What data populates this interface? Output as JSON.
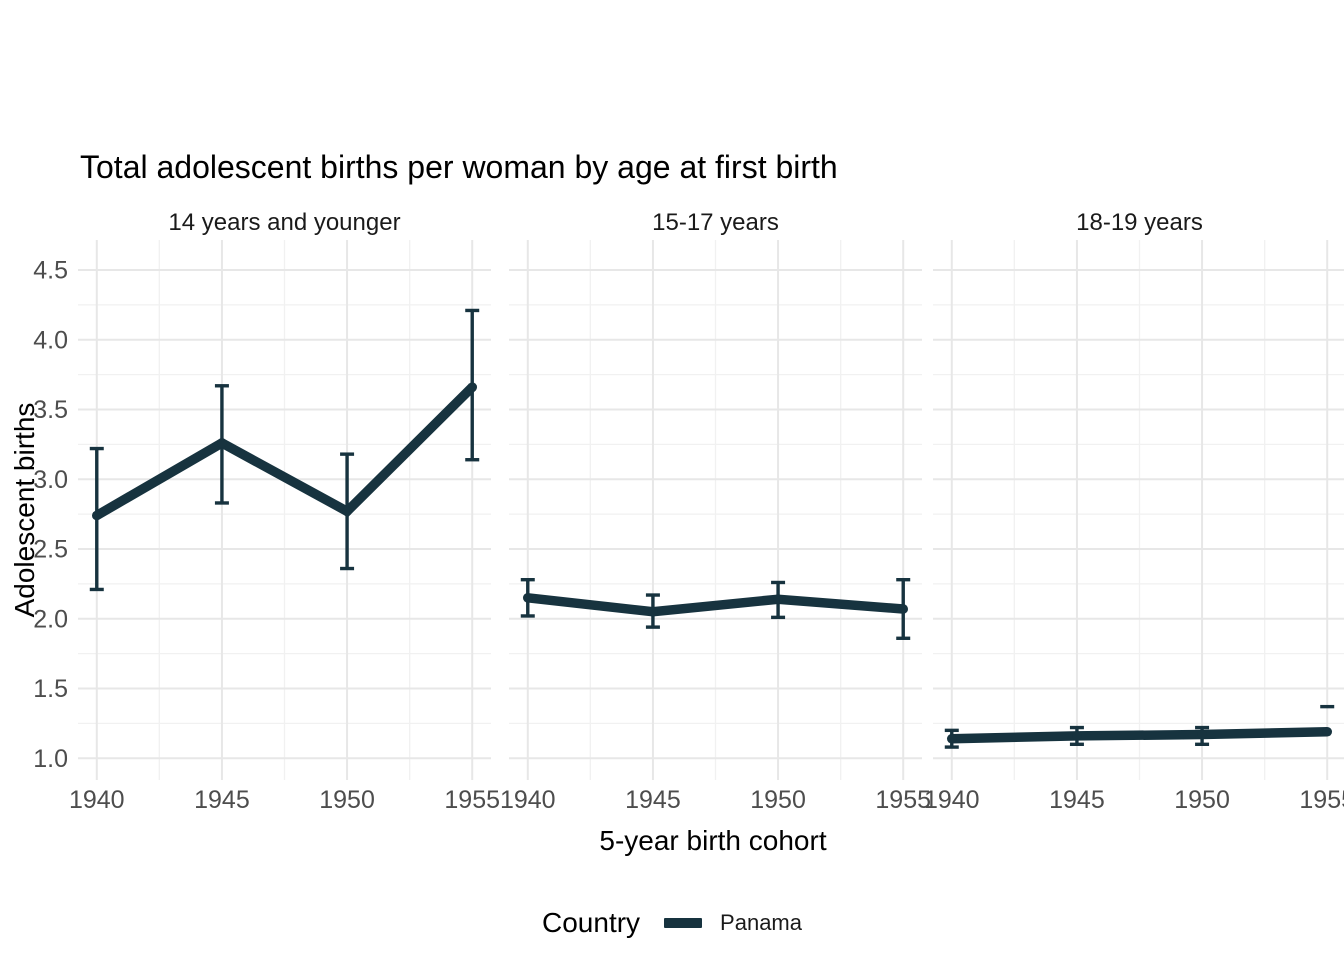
{
  "title": "Total adolescent births per woman by age at first birth",
  "legend": {
    "title": "Country",
    "entries": [
      {
        "label": "Panama",
        "color": "#17333F"
      }
    ]
  },
  "chart_data": {
    "type": "line",
    "title": "Total adolescent births per woman by age at first birth",
    "xlabel": "5-year birth cohort",
    "ylabel": "Adolescent births",
    "x": [
      1940,
      1945,
      1950,
      1955
    ],
    "x_tick_labels": [
      "1940",
      "1945",
      "1950",
      "1955"
    ],
    "x_minor_ticks": [
      1942.5,
      1947.5,
      1952.5
    ],
    "y_ticks": [
      1.0,
      1.5,
      2.0,
      2.5,
      3.0,
      3.5,
      4.0,
      4.5
    ],
    "y_minor_ticks": [
      1.25,
      1.75,
      2.25,
      2.75,
      3.25,
      3.75,
      4.25
    ],
    "ylim": [
      0.85,
      4.72
    ],
    "xlim": [
      1939.25,
      1955.75
    ],
    "grid": true,
    "legend_position": "bottom",
    "facets": [
      {
        "label": "14 years and younger",
        "series": [
          {
            "name": "Panama",
            "values": [
              2.74,
              3.26,
              2.77,
              3.66
            ],
            "ci_low": [
              2.21,
              2.83,
              2.36,
              3.14
            ],
            "ci_high": [
              3.22,
              3.67,
              3.18,
              4.21
            ]
          }
        ]
      },
      {
        "label": "15-17 years",
        "series": [
          {
            "name": "Panama",
            "values": [
              2.15,
              2.05,
              2.14,
              2.07
            ],
            "ci_low": [
              2.02,
              1.94,
              2.01,
              1.86
            ],
            "ci_high": [
              2.28,
              2.17,
              2.26,
              2.28
            ]
          }
        ]
      },
      {
        "label": "18-19 years",
        "series": [
          {
            "name": "Panama",
            "values": [
              1.14,
              1.16,
              1.17,
              1.19
            ],
            "ci_low": [
              1.08,
              1.1,
              1.1,
              null
            ],
            "ci_high": [
              1.2,
              1.22,
              1.22,
              1.37
            ]
          }
        ]
      }
    ],
    "colors": {
      "series": "#17333F",
      "grid_major": "#E7E7E7",
      "grid_minor": "#F1F1F1",
      "tick_label": "#4D4D4D",
      "facet_label": "#1A1A1A",
      "axis_title": "#000000"
    }
  }
}
